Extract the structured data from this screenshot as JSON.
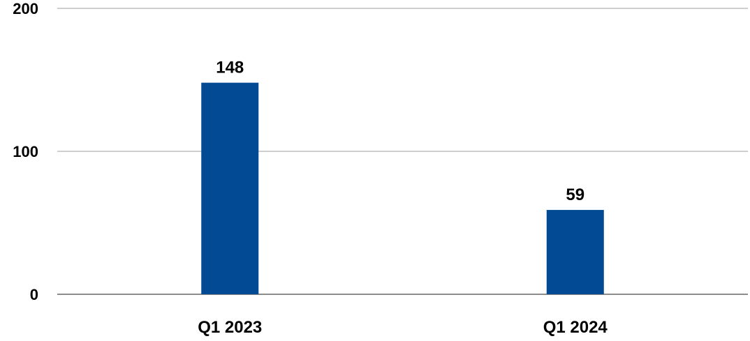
{
  "chart_data": {
    "type": "bar",
    "categories": [
      "Q1 2023",
      "Q1 2024"
    ],
    "values": [
      148,
      59
    ],
    "data_labels": [
      "148",
      "59"
    ],
    "title": "",
    "xlabel": "",
    "ylabel": "",
    "ylim": [
      0,
      200
    ],
    "yticks": [
      0,
      100,
      200
    ],
    "ytick_labels": [
      "0",
      "100",
      "200"
    ],
    "grid": true,
    "legend": "none",
    "bar_color": "#034a94"
  }
}
